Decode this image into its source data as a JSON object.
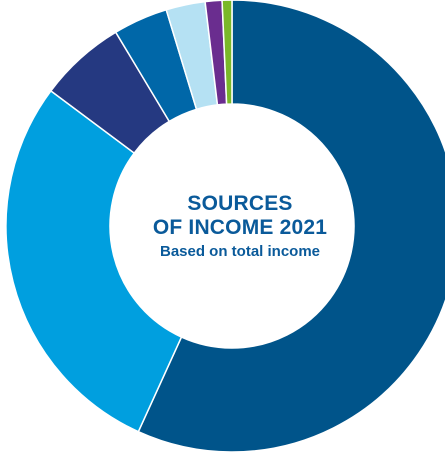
{
  "chart_data": {
    "type": "pie",
    "donut": true,
    "title_line1": "SOURCES",
    "title_line2": "OF INCOME 2021",
    "subtitle": "Based on total income",
    "slices": [
      {
        "value": 56.8,
        "color": "#00548a"
      },
      {
        "value": 28.4,
        "color": "#009fdf"
      },
      {
        "value": 6.2,
        "color": "#253981"
      },
      {
        "value": 3.9,
        "color": "#0067a8"
      },
      {
        "value": 2.8,
        "color": "#b5e1f3"
      },
      {
        "value": 1.2,
        "color": "#6a2d8f"
      },
      {
        "value": 0.7,
        "color": "#7ab829"
      }
    ]
  }
}
